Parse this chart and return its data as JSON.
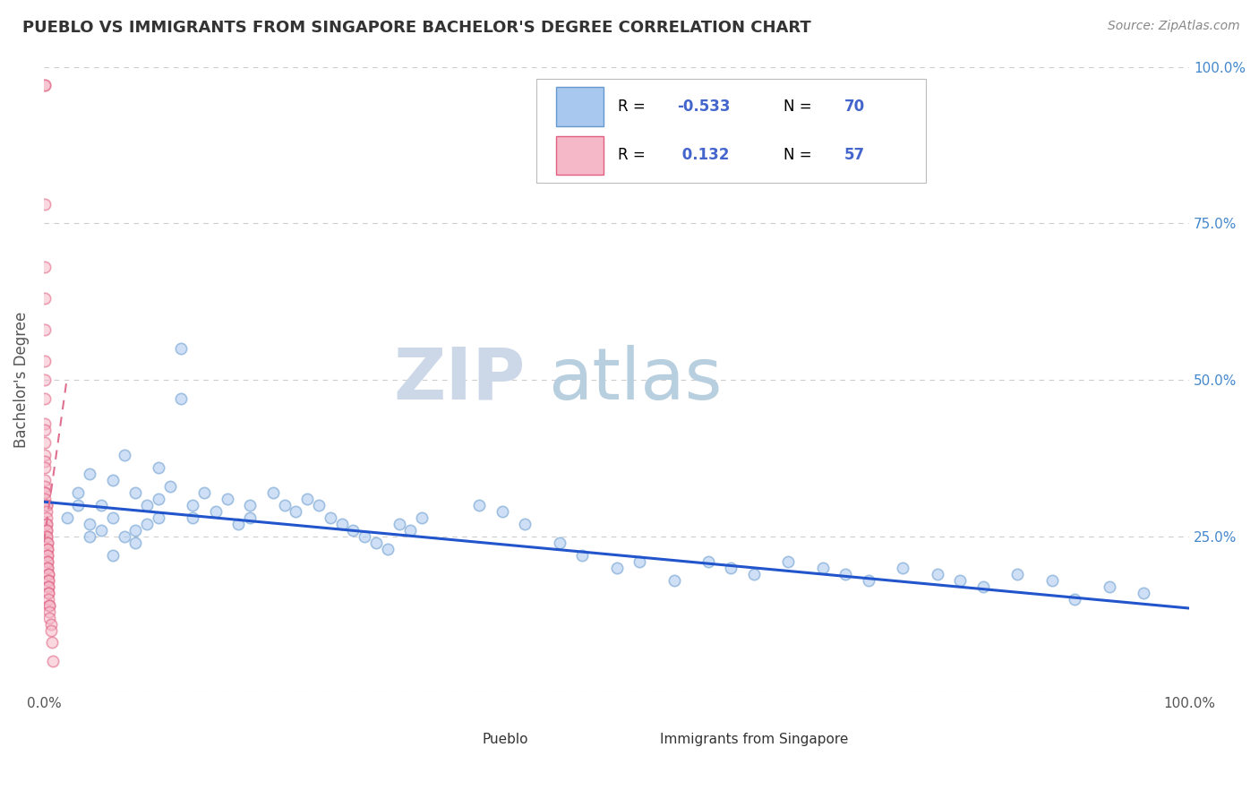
{
  "title": "PUEBLO VS IMMIGRANTS FROM SINGAPORE BACHELOR'S DEGREE CORRELATION CHART",
  "source": "Source: ZipAtlas.com",
  "ylabel": "Bachelor's Degree",
  "x_min": 0.0,
  "x_max": 1.0,
  "y_min": 0.0,
  "y_max": 1.0,
  "y_ticks": [
    0.0,
    0.25,
    0.5,
    0.75,
    1.0
  ],
  "y_tick_labels": [
    "",
    "25.0%",
    "50.0%",
    "75.0%",
    "100.0%"
  ],
  "blue_color": "#a8c8f0",
  "blue_edge_color": "#6699cc",
  "pink_color": "#f5b8c8",
  "pink_edge_color": "#e06080",
  "blue_line_color": "#2255cc",
  "pink_line_color": "#e07090",
  "R_blue": -0.533,
  "R_pink": 0.132,
  "N_blue": 70,
  "N_pink": 57,
  "blue_scatter_x": [
    0.02,
    0.03,
    0.03,
    0.04,
    0.04,
    0.04,
    0.05,
    0.05,
    0.06,
    0.06,
    0.06,
    0.07,
    0.07,
    0.08,
    0.08,
    0.08,
    0.09,
    0.09,
    0.1,
    0.1,
    0.1,
    0.11,
    0.12,
    0.12,
    0.13,
    0.13,
    0.14,
    0.15,
    0.16,
    0.17,
    0.18,
    0.18,
    0.2,
    0.21,
    0.22,
    0.23,
    0.24,
    0.25,
    0.26,
    0.27,
    0.28,
    0.29,
    0.3,
    0.31,
    0.32,
    0.33,
    0.38,
    0.4,
    0.42,
    0.45,
    0.47,
    0.5,
    0.52,
    0.55,
    0.58,
    0.6,
    0.62,
    0.65,
    0.68,
    0.7,
    0.72,
    0.75,
    0.78,
    0.8,
    0.82,
    0.85,
    0.88,
    0.9,
    0.93,
    0.96
  ],
  "blue_scatter_y": [
    0.28,
    0.32,
    0.3,
    0.35,
    0.25,
    0.27,
    0.3,
    0.26,
    0.34,
    0.28,
    0.22,
    0.38,
    0.25,
    0.32,
    0.26,
    0.24,
    0.3,
    0.27,
    0.36,
    0.31,
    0.28,
    0.33,
    0.55,
    0.47,
    0.28,
    0.3,
    0.32,
    0.29,
    0.31,
    0.27,
    0.3,
    0.28,
    0.32,
    0.3,
    0.29,
    0.31,
    0.3,
    0.28,
    0.27,
    0.26,
    0.25,
    0.24,
    0.23,
    0.27,
    0.26,
    0.28,
    0.3,
    0.29,
    0.27,
    0.24,
    0.22,
    0.2,
    0.21,
    0.18,
    0.21,
    0.2,
    0.19,
    0.21,
    0.2,
    0.19,
    0.18,
    0.2,
    0.19,
    0.18,
    0.17,
    0.19,
    0.18,
    0.15,
    0.17,
    0.16
  ],
  "pink_scatter_x": [
    0.001,
    0.001,
    0.001,
    0.001,
    0.001,
    0.001,
    0.001,
    0.001,
    0.001,
    0.001,
    0.001,
    0.001,
    0.001,
    0.001,
    0.001,
    0.001,
    0.001,
    0.001,
    0.001,
    0.001,
    0.002,
    0.002,
    0.002,
    0.002,
    0.002,
    0.002,
    0.002,
    0.002,
    0.002,
    0.002,
    0.003,
    0.003,
    0.003,
    0.003,
    0.003,
    0.003,
    0.003,
    0.003,
    0.003,
    0.003,
    0.004,
    0.004,
    0.004,
    0.004,
    0.004,
    0.004,
    0.004,
    0.004,
    0.004,
    0.005,
    0.005,
    0.005,
    0.005,
    0.006,
    0.006,
    0.007,
    0.008
  ],
  "pink_scatter_y": [
    0.97,
    0.97,
    0.78,
    0.68,
    0.63,
    0.58,
    0.53,
    0.5,
    0.47,
    0.43,
    0.42,
    0.4,
    0.38,
    0.37,
    0.36,
    0.34,
    0.33,
    0.32,
    0.32,
    0.31,
    0.3,
    0.3,
    0.29,
    0.28,
    0.27,
    0.27,
    0.26,
    0.26,
    0.25,
    0.25,
    0.24,
    0.24,
    0.23,
    0.23,
    0.22,
    0.22,
    0.21,
    0.21,
    0.2,
    0.2,
    0.19,
    0.19,
    0.18,
    0.18,
    0.17,
    0.17,
    0.16,
    0.16,
    0.15,
    0.14,
    0.14,
    0.13,
    0.12,
    0.11,
    0.1,
    0.08,
    0.05
  ],
  "pink_trend_x": [
    0.0,
    0.02
  ],
  "pink_trend_y": [
    0.24,
    0.5
  ],
  "blue_trend_x": [
    0.0,
    1.0
  ],
  "blue_trend_y": [
    0.305,
    0.135
  ],
  "background_color": "#ffffff",
  "grid_color": "#cccccc",
  "title_color": "#333333",
  "axis_label_color": "#555555",
  "right_tick_color": "#4488cc",
  "n_color": "#4466cc",
  "marker_size": 80,
  "marker_alpha": 0.55,
  "watermark_zip_color": "#ccd8e8",
  "watermark_atlas_color": "#b8cfe0"
}
